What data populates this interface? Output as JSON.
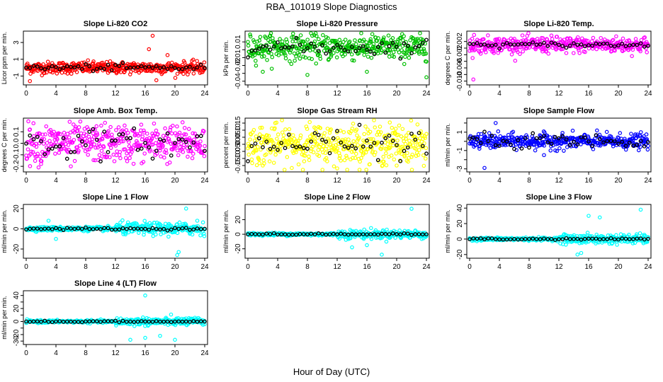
{
  "figure": {
    "title": "RBA_101019  Slope Diagnostics",
    "xlabel": "Hour of Day (UTC)"
  },
  "chart_data": [
    {
      "type": "scatter",
      "title": "Slope Li-820 CO2",
      "ylabel": "Licor ppm per min.",
      "color": "#ff0000",
      "xlim": [
        0,
        24
      ],
      "ylim": [
        -1.8,
        4.1
      ],
      "xticks": [
        0,
        4,
        8,
        12,
        16,
        20,
        24
      ],
      "yticks": [
        -1,
        1,
        3
      ],
      "ytick_labels": [
        "-1",
        "1",
        "3"
      ],
      "center": 0,
      "spread": 0.35,
      "outliers": [
        [
          17,
          3.8
        ],
        [
          16.5,
          2.2
        ],
        [
          17.5,
          -1.5
        ],
        [
          0.5,
          -1.6
        ],
        [
          19,
          1.5
        ]
      ],
      "black_spread": 0.2
    },
    {
      "type": "scatter",
      "title": "Slope Li-820 Pressure",
      "ylabel": "kPa per min.",
      "color": "#00c000",
      "xlim": [
        0,
        24
      ],
      "ylim": [
        -0.042,
        0.021
      ],
      "xticks": [
        0,
        4,
        8,
        12,
        16,
        20,
        24
      ],
      "yticks": [
        -0.04,
        -0.03,
        -0.02,
        -0.01,
        0,
        0.01
      ],
      "ytick_labels": [
        "-0.04",
        "",
        "-0.02",
        "-0.01",
        "",
        "0.01"
      ],
      "center": 0.003,
      "spread": 0.008,
      "outliers": [
        [
          2,
          -0.028
        ],
        [
          8,
          -0.032
        ],
        [
          16,
          -0.028
        ],
        [
          24,
          -0.035
        ],
        [
          3,
          0.018
        ],
        [
          22,
          0.016
        ]
      ],
      "black_spread": 0.005
    },
    {
      "type": "scatter",
      "title": "Slope Li-820 Temp.",
      "ylabel": "degrees C per min.",
      "color": "#ff00ff",
      "xlim": [
        0,
        24
      ],
      "ylim": [
        -0.0105,
        0.0045
      ],
      "xticks": [
        0,
        4,
        8,
        12,
        16,
        20,
        24
      ],
      "yticks": [
        -0.01,
        -0.008,
        -0.006,
        -0.004,
        -0.002,
        0,
        0.002
      ],
      "ytick_labels": [
        "-0.010",
        "",
        "-0.006",
        "",
        "-0.002",
        "",
        "0.002"
      ],
      "center": 0.001,
      "spread": 0.0012,
      "outliers": [
        [
          0.5,
          -0.0095
        ],
        [
          0.6,
          0.004
        ],
        [
          0.4,
          -0.003
        ],
        [
          13,
          -0.0015
        ]
      ],
      "black_spread": 0.0004
    },
    {
      "type": "scatter",
      "title": "Slope Amb. Box Temp.",
      "ylabel": "degrees C per min.",
      "color": "#ff00ff",
      "xlim": [
        0,
        24
      ],
      "ylim": [
        -0.23,
        0.2
      ],
      "xticks": [
        0,
        4,
        8,
        12,
        16,
        20,
        24
      ],
      "yticks": [
        -0.2,
        -0.1,
        0,
        0.1
      ],
      "ytick_labels": [
        "-0.2",
        "-0.1",
        "0.0",
        "0.1"
      ],
      "center": 0,
      "spread": 0.08,
      "outliers": [
        [
          0.5,
          0.12
        ],
        [
          2,
          -0.18
        ],
        [
          6,
          -0.2
        ]
      ],
      "black_spread": 0.06
    },
    {
      "type": "scatter",
      "title": "Slope Gas Stream RH",
      "ylabel": "percent per min.",
      "color": "#ffff00",
      "xlim": [
        0,
        24
      ],
      "ylim": [
        -0.18,
        0.17
      ],
      "xticks": [
        0,
        4,
        8,
        12,
        16,
        20,
        24
      ],
      "yticks": [
        -0.15,
        -0.1,
        -0.05,
        0,
        0.05,
        0.1,
        0.15
      ],
      "ytick_labels": [
        "-0.15",
        "-0.10",
        "-0.05",
        "0.00",
        "0.05",
        "0.10",
        "0.15"
      ],
      "center": 0,
      "spread": 0.07,
      "outliers": [
        [
          2,
          -0.15
        ],
        [
          12,
          -0.17
        ],
        [
          20,
          -0.15
        ]
      ],
      "black_spread": 0.05
    },
    {
      "type": "scatter",
      "title": "Slope Sample Flow",
      "ylabel": "ml/min per min.",
      "color": "#0000ff",
      "xlim": [
        0,
        24
      ],
      "ylim": [
        -3.1,
        2.3
      ],
      "xticks": [
        0,
        4,
        8,
        12,
        16,
        20,
        24
      ],
      "yticks": [
        -3,
        -2,
        -1,
        0,
        1,
        2
      ],
      "ytick_labels": [
        "-3",
        "",
        "-1",
        "",
        "1",
        ""
      ],
      "center": 0,
      "spread": 0.4,
      "outliers": [
        [
          2,
          -2.9
        ],
        [
          3.5,
          2
        ],
        [
          10,
          -1.5
        ]
      ],
      "black_spread": 0.4
    },
    {
      "type": "scatter",
      "title": "Slope Line 1 Flow",
      "ylabel": "ml/min per min.",
      "color": "#00ffff",
      "xlim": [
        0,
        24
      ],
      "ylim": [
        -27,
        22
      ],
      "xticks": [
        0,
        4,
        8,
        12,
        16,
        20,
        24
      ],
      "yticks": [
        -20,
        0,
        20
      ],
      "ytick_labels": [
        "-20",
        "0",
        "20"
      ],
      "center": 0,
      "spread": 1,
      "outliers": [
        [
          20.3,
          -26
        ],
        [
          20.5,
          -23
        ],
        [
          21.5,
          20
        ],
        [
          4,
          -10
        ],
        [
          3,
          8
        ],
        [
          23,
          8
        ]
      ],
      "black_spread": 0.5
    },
    {
      "type": "scatter",
      "title": "Slope Line 2 Flow",
      "ylabel": "ml/min per min.",
      "color": "#00ffff",
      "xlim": [
        0,
        24
      ],
      "ylim": [
        -30,
        38
      ],
      "xticks": [
        0,
        4,
        8,
        12,
        16,
        20,
        24
      ],
      "yticks": [
        -20,
        0,
        20
      ],
      "ytick_labels": [
        "-20",
        "0",
        "20"
      ],
      "center": 0,
      "spread": 1,
      "outliers": [
        [
          18,
          -28
        ],
        [
          22,
          35
        ],
        [
          14,
          -18
        ],
        [
          16,
          -15
        ]
      ],
      "black_spread": 0.5
    },
    {
      "type": "scatter",
      "title": "Slope Line 3 Flow",
      "ylabel": "ml/min per min.",
      "color": "#00ffff",
      "xlim": [
        0,
        24
      ],
      "ylim": [
        -22,
        42
      ],
      "xticks": [
        0,
        4,
        8,
        12,
        16,
        20,
        24
      ],
      "yticks": [
        -20,
        0,
        20,
        40
      ],
      "ytick_labels": [
        "-20",
        "0",
        "20",
        "40"
      ],
      "center": 0,
      "spread": 1,
      "outliers": [
        [
          16,
          30
        ],
        [
          17.5,
          28
        ],
        [
          23,
          38
        ],
        [
          15,
          -18
        ],
        [
          14.5,
          -20
        ]
      ],
      "black_spread": 0.5
    },
    {
      "type": "scatter",
      "title": "Slope Line 4 (LT) Flow",
      "ylabel": "ml/min per min.",
      "color": "#00ffff",
      "xlim": [
        0,
        24
      ],
      "ylim": [
        -32,
        44
      ],
      "xticks": [
        0,
        4,
        8,
        12,
        16,
        20,
        24
      ],
      "yticks": [
        -30,
        -20,
        -10,
        0,
        10,
        20,
        30,
        40
      ],
      "ytick_labels": [
        "-30",
        "-20",
        "",
        "0",
        "",
        "20",
        "",
        "40"
      ],
      "center": 0,
      "spread": 1,
      "outliers": [
        [
          16,
          40
        ],
        [
          14,
          -28
        ],
        [
          16,
          -25
        ],
        [
          18,
          -22
        ],
        [
          20,
          -28
        ]
      ],
      "black_spread": 0.5
    }
  ]
}
